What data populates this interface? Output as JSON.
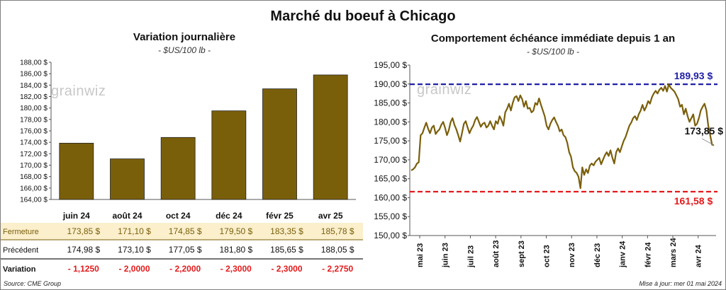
{
  "title": "Marché du boeuf à Chicago",
  "left_chart": {
    "title": "Variation  journalière",
    "subtitle": "- $US/100 lb -",
    "logo": "grainwiz"
  },
  "right_chart": {
    "title": "Comportement  échéance immédiate depuis 1 an",
    "subtitle": "- $US/100 lb -",
    "logo": "grainwiz"
  },
  "table": {
    "rows": [
      {
        "label": "Fermeture",
        "values": [
          "173,85  $",
          "171,10  $",
          "174,85  $",
          "179,50  $",
          "183,35  $",
          "185,78  $"
        ]
      },
      {
        "label": "Précédent",
        "values": [
          "174,98  $",
          "173,10  $",
          "177,05  $",
          "181,80  $",
          "185,65  $",
          "188,05  $"
        ]
      },
      {
        "label": "Variation",
        "values": [
          "- 1,1250",
          "- 2,0000",
          "- 2,2000",
          "- 2,3000",
          "- 2,3000",
          "- 2,2750"
        ]
      }
    ]
  },
  "footer": {
    "source": "Source: CME Group",
    "update": "Mise à jour: mer 01 mai 2024"
  },
  "chart_data": [
    {
      "type": "bar",
      "categories": [
        "juin 24",
        "août 24",
        "oct 24",
        "déc 24",
        "févr 25",
        "avr 25"
      ],
      "values": [
        173.85,
        171.1,
        174.85,
        179.5,
        183.35,
        185.78
      ],
      "ylim": [
        164,
        188
      ],
      "yticks": [
        "164,00 $",
        "166,00 $",
        "168,00 $",
        "170,00 $",
        "172,00 $",
        "174,00 $",
        "176,00 $",
        "178,00 $",
        "180,00 $",
        "182,00 $",
        "184,00 $",
        "186,00 $",
        "188,00 $"
      ],
      "color": "#7a5f0b",
      "grid": false
    },
    {
      "type": "line",
      "x_labels": [
        "mai 23",
        "juin 23",
        "juil 23",
        "août 23",
        "sept 23",
        "oct 23",
        "nov 23",
        "déc 23",
        "janv 24",
        "févr 24",
        "mars 24",
        "avr 24"
      ],
      "ylim": [
        150,
        195
      ],
      "yticks": [
        "150,00 $",
        "155,00 $",
        "160,00 $",
        "165,00 $",
        "170,00 $",
        "175,00 $",
        "180,00 $",
        "185,00 $",
        "190,00 $",
        "195,00 $"
      ],
      "series": [
        {
          "values": [
            167.2,
            167.5,
            168.0,
            169.0,
            169.3,
            176.5,
            177.0,
            178.5,
            179.8,
            178.2,
            177.0,
            178.5,
            179.0,
            176.8,
            177.5,
            178.0,
            179.2,
            180.0,
            178.5,
            176.5,
            177.8,
            180.0,
            181.0,
            179.2,
            178.0,
            176.5,
            174.8,
            177.0,
            179.5,
            180.2,
            178.5,
            177.0,
            178.2,
            179.0,
            180.5,
            181.3,
            180.0,
            178.7,
            179.5,
            179.8,
            178.5,
            179.0,
            180.2,
            179.0,
            178.0,
            180.2,
            179.5,
            181.5,
            180.5,
            179.0,
            182.5,
            183.5,
            184.8,
            183.0,
            185.0,
            186.5,
            186.8,
            185.5,
            187.0,
            186.0,
            184.0,
            185.5,
            183.5,
            183.7,
            182.5,
            183.0,
            185.0,
            184.5,
            186.2,
            184.5,
            183.0,
            181.5,
            179.0,
            178.0,
            179.5,
            180.5,
            181.2,
            180.0,
            179.0,
            177.5,
            178.0,
            176.5,
            176.0,
            174.5,
            172.0,
            170.8,
            168.0,
            167.0,
            166.5,
            165.5,
            162.5,
            168.0,
            166.0,
            167.5,
            166.5,
            168.5,
            169.0,
            168.5,
            169.5,
            170.0,
            170.5,
            168.8,
            170.0,
            171.2,
            172.0,
            171.0,
            172.5,
            170.5,
            169.0,
            172.0,
            173.0,
            172.0,
            173.5,
            175.0,
            176.0,
            177.5,
            179.0,
            179.8,
            181.0,
            181.5,
            180.5,
            182.0,
            183.0,
            184.5,
            183.0,
            184.0,
            185.5,
            184.8,
            186.5,
            187.5,
            188.2,
            187.5,
            188.5,
            189.0,
            188.2,
            189.5,
            188.0,
            189.93,
            189.0,
            188.5,
            188.0,
            187.0,
            186.0,
            184.0,
            184.5,
            182.0,
            183.5,
            181.5,
            180.0,
            181.0,
            182.0,
            179.0,
            179.5,
            181.0,
            183.0,
            184.0,
            184.8,
            183.0,
            179.0,
            176.5,
            174.0,
            173.85
          ]
        }
      ],
      "reference_lines": [
        {
          "value": 189.93,
          "label": "189,93 $",
          "color": "#1f1fa8"
        },
        {
          "value": 161.58,
          "label": "161,58 $",
          "color": "#e31a1c"
        }
      ],
      "last_label": "173,85 $",
      "color": "#7a5f0b",
      "grid": false
    }
  ]
}
